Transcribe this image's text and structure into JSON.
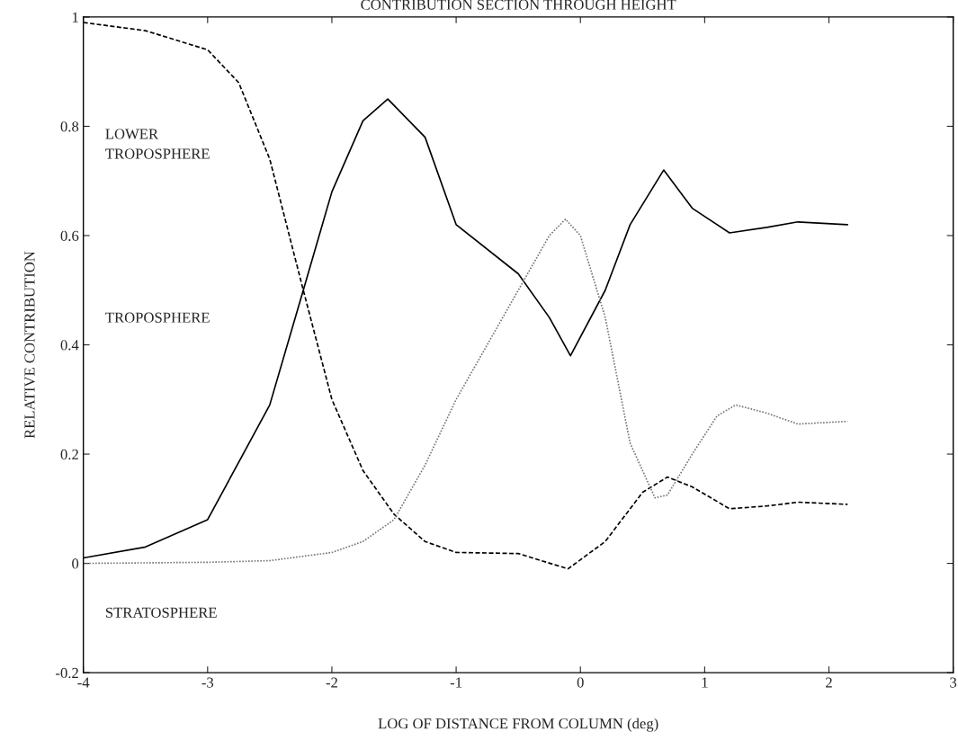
{
  "chart_data": {
    "type": "line",
    "title": "CONTRIBUTION SECTION THROUGH HEIGHT",
    "xlabel": "LOG OF DISTANCE FROM COLUMN (deg)",
    "ylabel": "RELATIVE CONTRIBUTION",
    "annotations": [
      "LOWER\nTROPOSPHERE",
      "TROPOSPHERE",
      "STRATOSPHERE"
    ],
    "xlim": [
      -4,
      3
    ],
    "xticks": [
      -4,
      -3,
      -2,
      -1,
      0,
      1,
      2,
      3
    ],
    "ylim": [
      -0.2,
      1
    ],
    "yticks": [
      -0.2,
      0,
      0.2,
      0.4,
      0.6,
      0.8,
      1
    ],
    "grid": false,
    "legend": false,
    "marker": "none",
    "series": [
      {
        "color": "#000000",
        "line_style": "dashed",
        "x": [
          -4,
          -3.5,
          -3,
          -2.75,
          -2.5,
          -2.23,
          -2,
          -1.75,
          -1.5,
          -1.25,
          -1,
          -0.5,
          -0.1,
          0.2,
          0.5,
          0.7,
          0.9,
          1.2,
          1.5,
          1.75,
          2.15
        ],
        "values": [
          0.99,
          0.975,
          0.94,
          0.88,
          0.74,
          0.5,
          0.3,
          0.17,
          0.09,
          0.04,
          0.02,
          0.018,
          -0.01,
          0.04,
          0.13,
          0.158,
          0.14,
          0.1,
          0.105,
          0.112,
          0.108
        ]
      },
      {
        "color": "#000000",
        "line_style": "solid",
        "x": [
          -4,
          -3.5,
          -3,
          -2.5,
          -2.23,
          -2,
          -1.75,
          -1.55,
          -1.25,
          -1,
          -0.5,
          -0.25,
          -0.08,
          0.2,
          0.4,
          0.67,
          0.9,
          1.2,
          1.5,
          1.75,
          2.15
        ],
        "values": [
          0.01,
          0.03,
          0.08,
          0.29,
          0.5,
          0.68,
          0.81,
          0.85,
          0.78,
          0.62,
          0.53,
          0.45,
          0.38,
          0.5,
          0.62,
          0.72,
          0.65,
          0.605,
          0.615,
          0.625,
          0.62
        ]
      },
      {
        "color": "#777777",
        "line_style": "dotted",
        "x": [
          -4,
          -3,
          -2.5,
          -2,
          -1.75,
          -1.5,
          -1.25,
          -1,
          -0.5,
          -0.25,
          -0.12,
          0,
          0.2,
          0.4,
          0.6,
          0.7,
          0.9,
          1.1,
          1.25,
          1.5,
          1.75,
          2.15
        ],
        "values": [
          0,
          0.002,
          0.005,
          0.02,
          0.04,
          0.08,
          0.18,
          0.3,
          0.5,
          0.6,
          0.63,
          0.6,
          0.45,
          0.22,
          0.12,
          0.125,
          0.2,
          0.27,
          0.29,
          0.275,
          0.255,
          0.26
        ]
      }
    ]
  }
}
